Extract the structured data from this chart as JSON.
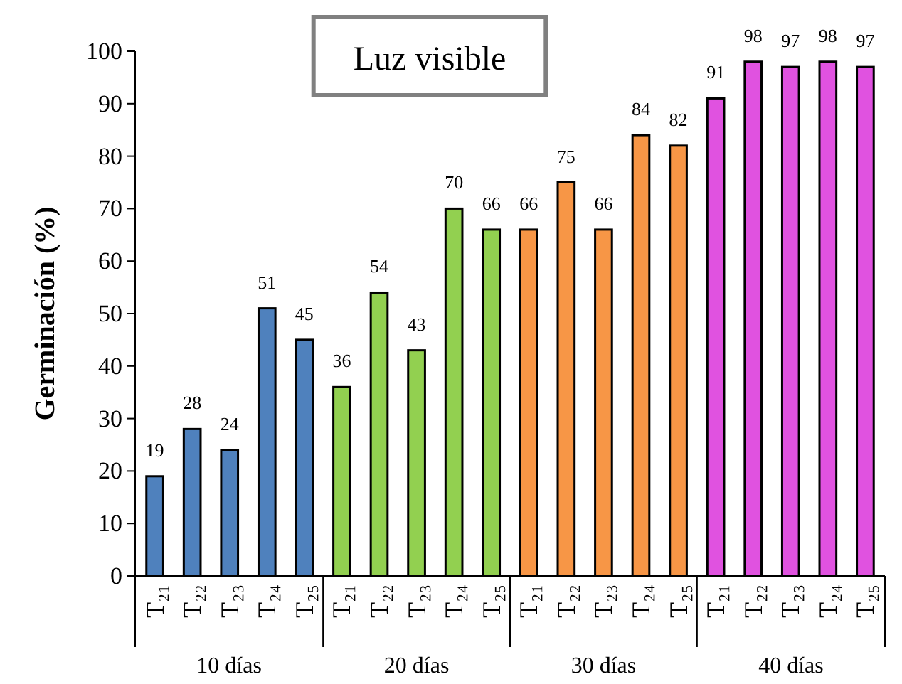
{
  "chart_data": {
    "type": "bar",
    "title": "Luz visible",
    "ylabel": "Germinación (%)",
    "categories": [
      "T₂₁",
      "T₂₂",
      "T₂₃",
      "T₂₄",
      "T₂₅",
      "T₂₁",
      "T₂₂",
      "T₂₃",
      "T₂₄",
      "T₂₅",
      "T₂₁",
      "T₂₂",
      "T₂₃",
      "T₂₄",
      "T₂₅",
      "T₂₁",
      "T₂₂",
      "T₂₃",
      "T₂₄",
      "T₂₅"
    ],
    "values": [
      19,
      28,
      24,
      51,
      45,
      36,
      54,
      43,
      70,
      66,
      66,
      75,
      66,
      84,
      82,
      91,
      98,
      97,
      98,
      97
    ],
    "colors": [
      "#4f81bd",
      "#4f81bd",
      "#4f81bd",
      "#4f81bd",
      "#4f81bd",
      "#92d050",
      "#92d050",
      "#92d050",
      "#92d050",
      "#92d050",
      "#f79646",
      "#f79646",
      "#f79646",
      "#f79646",
      "#f79646",
      "#e052e0",
      "#e052e0",
      "#e052e0",
      "#e052e0",
      "#e052e0"
    ],
    "data_labels": true,
    "ylim": [
      0,
      100
    ],
    "yticks": [
      0,
      10,
      20,
      30,
      40,
      50,
      60,
      70,
      80,
      90,
      100
    ],
    "grid": false,
    "annotations": [
      "10 días",
      "20 días",
      "30 días",
      "40 días"
    ]
  }
}
